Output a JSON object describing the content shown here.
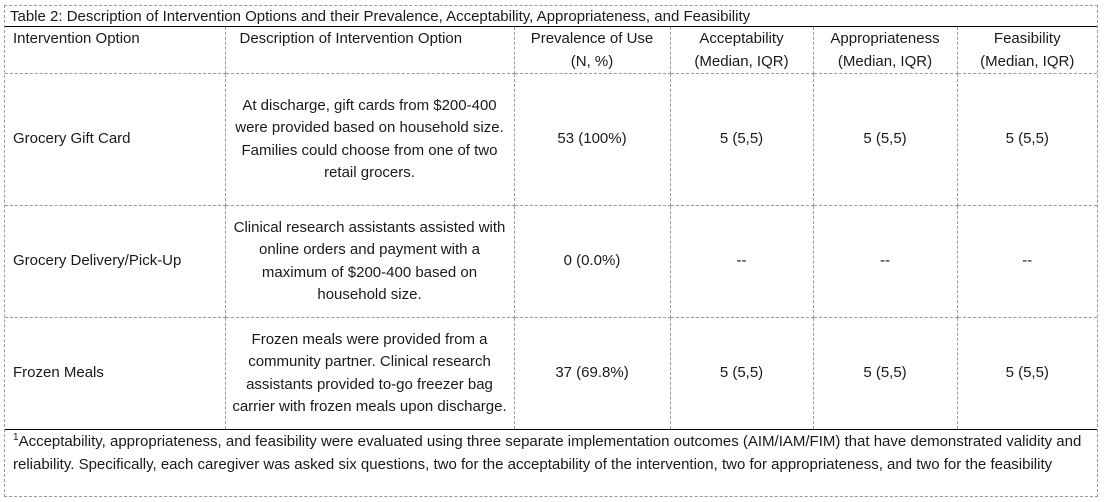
{
  "table": {
    "caption": "Table 2: Description of Intervention Options and their Prevalence, Acceptability, Appropriateness, and Feasibility",
    "headers": {
      "option": "Intervention Option",
      "description": "Description of Intervention Option",
      "prevalence": "Prevalence of Use (N, %)",
      "acceptability": "Acceptability (Median, IQR)",
      "appropriateness": "Appropriateness (Median, IQR)",
      "feasibility": "Feasibility (Median, IQR)"
    },
    "rows": [
      {
        "option": "Grocery Gift Card",
        "description": "At discharge, gift cards from $200-400 were provided based on household size. Families could choose from one of two retail grocers.",
        "prevalence": "53 (100%)",
        "acceptability": "5 (5,5)",
        "appropriateness": "5 (5,5)",
        "feasibility": "5 (5,5)"
      },
      {
        "option": "Grocery Delivery/Pick-Up",
        "description": "Clinical research assistants assisted with online orders and payment with a maximum of $200-400 based on household size.",
        "prevalence": "0 (0.0%)",
        "acceptability": "--",
        "appropriateness": "--",
        "feasibility": "--"
      },
      {
        "option": "Frozen Meals",
        "description": "Frozen meals were provided from a community partner. Clinical research assistants provided to-go freezer bag carrier with frozen meals upon discharge.",
        "prevalence": "37 (69.8%)",
        "acceptability": "5 (5,5)",
        "appropriateness": "5 (5,5)",
        "feasibility": "5 (5,5)"
      }
    ],
    "footnote": {
      "marker": "1",
      "text": "Acceptability, appropriateness, and feasibility were evaluated using three separate implementation outcomes (AIM/IAM/FIM) that have demonstrated validity and reliability. Specifically, each caregiver was asked six questions, two for the acceptability of the intervention, two for appropriateness, and two for the feasibility"
    }
  }
}
